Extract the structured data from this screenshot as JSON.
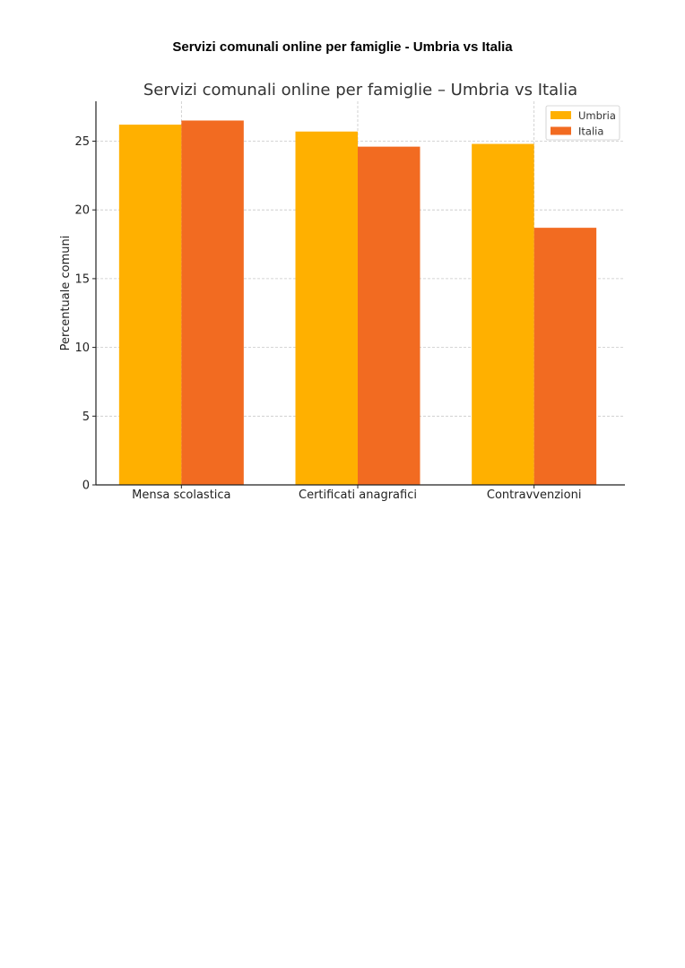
{
  "page": {
    "title": "Servizi comunali online per famiglie - Umbria vs Italia"
  },
  "chart_data": {
    "type": "bar",
    "title": "Servizi comunali online per famiglie – Umbria vs Italia",
    "xlabel": "",
    "ylabel": "Percentuale comuni",
    "categories": [
      "Mensa scolastica",
      "Certificati anagrafici",
      "Contravvenzioni"
    ],
    "series": [
      {
        "name": "Umbria",
        "values": [
          26.2,
          25.7,
          24.8
        ],
        "color": "#FFB000"
      },
      {
        "name": "Italia",
        "values": [
          26.5,
          24.6,
          18.7
        ],
        "color": "#F26B21"
      }
    ],
    "yticks": [
      0,
      5,
      10,
      15,
      20,
      25
    ],
    "ylim": [
      0,
      27.9
    ],
    "grid": true,
    "legend_position": "top-right"
  }
}
